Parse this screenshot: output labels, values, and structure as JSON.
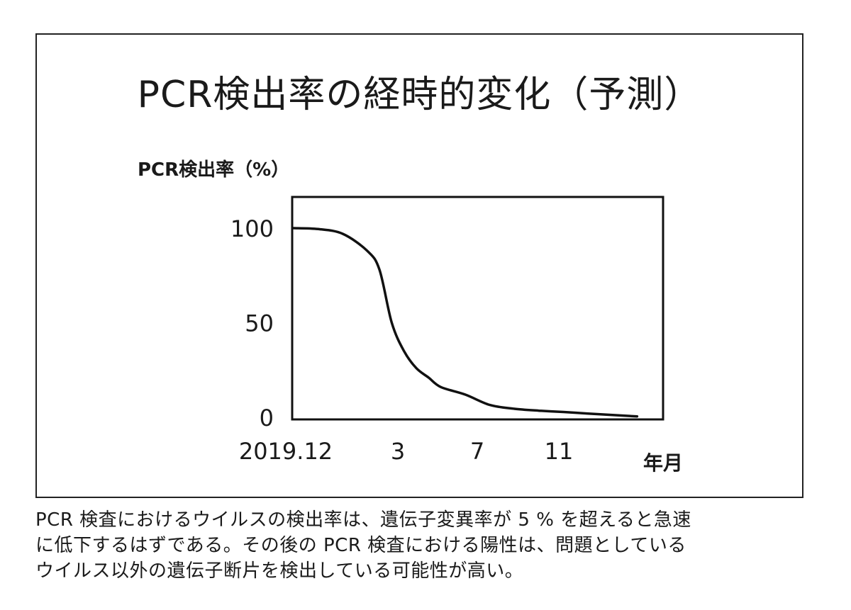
{
  "chart_data": {
    "type": "line",
    "title": "PCR検出率の経時的変化（予測）",
    "ylabel": "PCR検出率（%）",
    "xlabel": "年月",
    "ylim": [
      0,
      100
    ],
    "yticks": [
      "100",
      "50",
      "0"
    ],
    "ytick_values": [
      100,
      50,
      0
    ],
    "xtick_labels": [
      "2019.12",
      "3",
      "7",
      "11"
    ],
    "xtick_months": [
      0,
      3,
      7,
      11
    ],
    "xlim": [
      0,
      15
    ],
    "grid": false,
    "series": [
      {
        "x": [
          0,
          1,
          2,
          3,
          3.5,
          4,
          4.5,
          5,
          5.5,
          6,
          7,
          8,
          9,
          10,
          11,
          12,
          13,
          14
        ],
        "y": [
          100,
          99.5,
          97,
          88,
          78,
          50,
          35,
          26,
          21,
          16,
          12,
          6.5,
          4.5,
          3.5,
          2.8,
          2,
          1.2,
          0.5
        ]
      }
    ],
    "color": "#111111"
  },
  "caption": {
    "lines": [
      "PCR 検査におけるウイルスの検出率は、遺伝子変異率が 5 % を超えると急速",
      "に低下するはずである。その後の PCR 検査における陽性は、問題としている",
      "ウイルス以外の遺伝子断片を検出している可能性が高い。"
    ]
  }
}
